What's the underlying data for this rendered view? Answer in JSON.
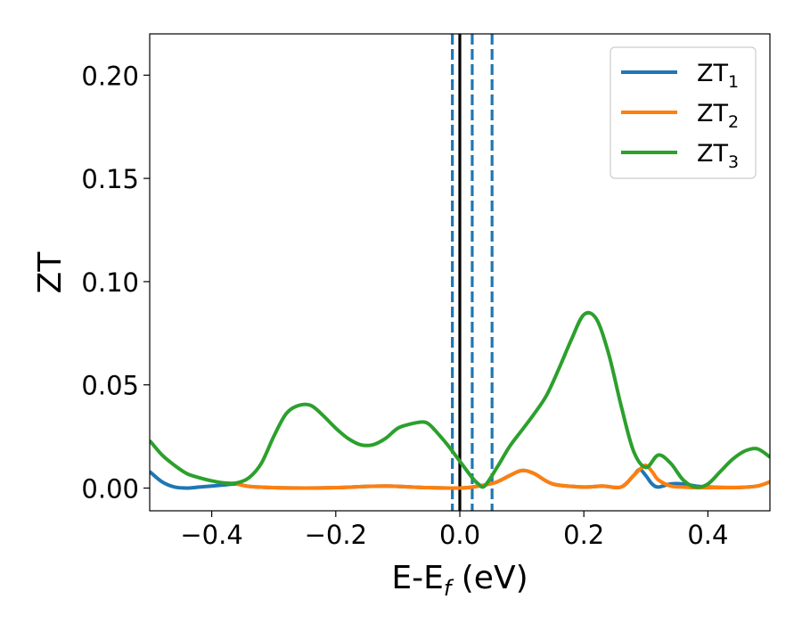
{
  "chart_data": {
    "type": "line",
    "title": "",
    "xlabel": "E-E",
    "xlabel_sub": "f",
    "xlabel_unit": " (eV)",
    "ylabel": "ZT",
    "xlim": [
      -0.5,
      0.5
    ],
    "ylim": [
      -0.011,
      0.22
    ],
    "x_ticks": [
      -0.4,
      -0.2,
      0.0,
      0.2,
      0.4
    ],
    "x_tick_labels": [
      "−0.4",
      "−0.2",
      "0.0",
      "0.2",
      "0.4"
    ],
    "y_ticks": [
      0.0,
      0.05,
      0.1,
      0.15,
      0.2
    ],
    "y_tick_labels": [
      "0.00",
      "0.05",
      "0.10",
      "0.15",
      "0.20"
    ],
    "grid": false,
    "legend_position": "top-right",
    "vlines": [
      {
        "x": 0.0,
        "style": "solid",
        "color": "#000000"
      },
      {
        "x": -0.012,
        "style": "dashed",
        "color": "#1f77b4"
      },
      {
        "x": 0.02,
        "style": "dashed",
        "color": "#1f77b4"
      },
      {
        "x": 0.052,
        "style": "dashed",
        "color": "#1f77b4"
      }
    ],
    "series": [
      {
        "name": "ZT",
        "name_sub": "1",
        "color": "#1f77b4",
        "x": [
          -0.5,
          -0.48,
          -0.46,
          -0.44,
          -0.42,
          -0.4,
          -0.38,
          -0.36,
          -0.34,
          -0.3,
          -0.25,
          -0.2,
          -0.15,
          -0.12,
          -0.1,
          -0.05,
          0.0,
          0.02,
          0.04,
          0.06,
          0.08,
          0.1,
          0.12,
          0.15,
          0.2,
          0.23,
          0.26,
          0.28,
          0.29,
          0.3,
          0.31,
          0.32,
          0.34,
          0.36,
          0.38,
          0.4,
          0.45,
          0.48,
          0.5
        ],
        "y": [
          0.008,
          0.003,
          0.0005,
          0.0,
          0.0005,
          0.001,
          0.0015,
          0.002,
          0.0008,
          0.0002,
          0.0,
          0.0002,
          0.0008,
          0.001,
          0.0008,
          0.0002,
          0.0,
          0.0005,
          0.0015,
          0.003,
          0.006,
          0.0085,
          0.007,
          0.002,
          0.0005,
          0.001,
          0.0005,
          0.006,
          0.009,
          0.006,
          0.002,
          0.0005,
          0.002,
          0.002,
          0.001,
          0.0005,
          0.0003,
          0.001,
          0.003
        ]
      },
      {
        "name": "ZT",
        "name_sub": "2",
        "color": "#ff7f0e",
        "x": [
          -0.36,
          -0.34,
          -0.3,
          -0.25,
          -0.2,
          -0.15,
          -0.12,
          -0.1,
          -0.05,
          0.0,
          0.02,
          0.04,
          0.06,
          0.08,
          0.1,
          0.12,
          0.15,
          0.2,
          0.23,
          0.26,
          0.28,
          0.29,
          0.3,
          0.31,
          0.32,
          0.34,
          0.36,
          0.38,
          0.4,
          0.45,
          0.48,
          0.5
        ],
        "y": [
          0.002,
          0.0008,
          0.0002,
          0.0,
          0.0002,
          0.0008,
          0.001,
          0.0008,
          0.0002,
          0.0,
          0.0005,
          0.0015,
          0.003,
          0.006,
          0.0085,
          0.007,
          0.002,
          0.0005,
          0.001,
          0.0005,
          0.006,
          0.009,
          0.011,
          0.008,
          0.004,
          0.001,
          0.0005,
          0.0002,
          0.0002,
          0.0003,
          0.001,
          0.003
        ]
      },
      {
        "name": "ZT",
        "name_sub": "3",
        "color": "#2ca02c",
        "x": [
          -0.5,
          -0.48,
          -0.46,
          -0.44,
          -0.42,
          -0.4,
          -0.38,
          -0.36,
          -0.34,
          -0.32,
          -0.3,
          -0.28,
          -0.26,
          -0.24,
          -0.22,
          -0.2,
          -0.18,
          -0.16,
          -0.14,
          -0.12,
          -0.1,
          -0.08,
          -0.06,
          -0.05,
          -0.04,
          -0.02,
          0.0,
          0.02,
          0.03,
          0.04,
          0.06,
          0.08,
          0.1,
          0.12,
          0.14,
          0.16,
          0.18,
          0.2,
          0.22,
          0.24,
          0.26,
          0.28,
          0.3,
          0.32,
          0.34,
          0.36,
          0.38,
          0.4,
          0.42,
          0.44,
          0.46,
          0.48,
          0.5
        ],
        "y": [
          0.023,
          0.016,
          0.011,
          0.007,
          0.005,
          0.0035,
          0.0025,
          0.0025,
          0.005,
          0.012,
          0.025,
          0.036,
          0.04,
          0.04,
          0.035,
          0.029,
          0.024,
          0.021,
          0.021,
          0.024,
          0.029,
          0.031,
          0.032,
          0.031,
          0.028,
          0.021,
          0.013,
          0.005,
          0.002,
          0.001,
          0.01,
          0.02,
          0.028,
          0.036,
          0.045,
          0.058,
          0.072,
          0.084,
          0.082,
          0.065,
          0.04,
          0.018,
          0.01,
          0.016,
          0.012,
          0.004,
          0.0005,
          0.002,
          0.008,
          0.014,
          0.018,
          0.019,
          0.015
        ]
      }
    ]
  }
}
